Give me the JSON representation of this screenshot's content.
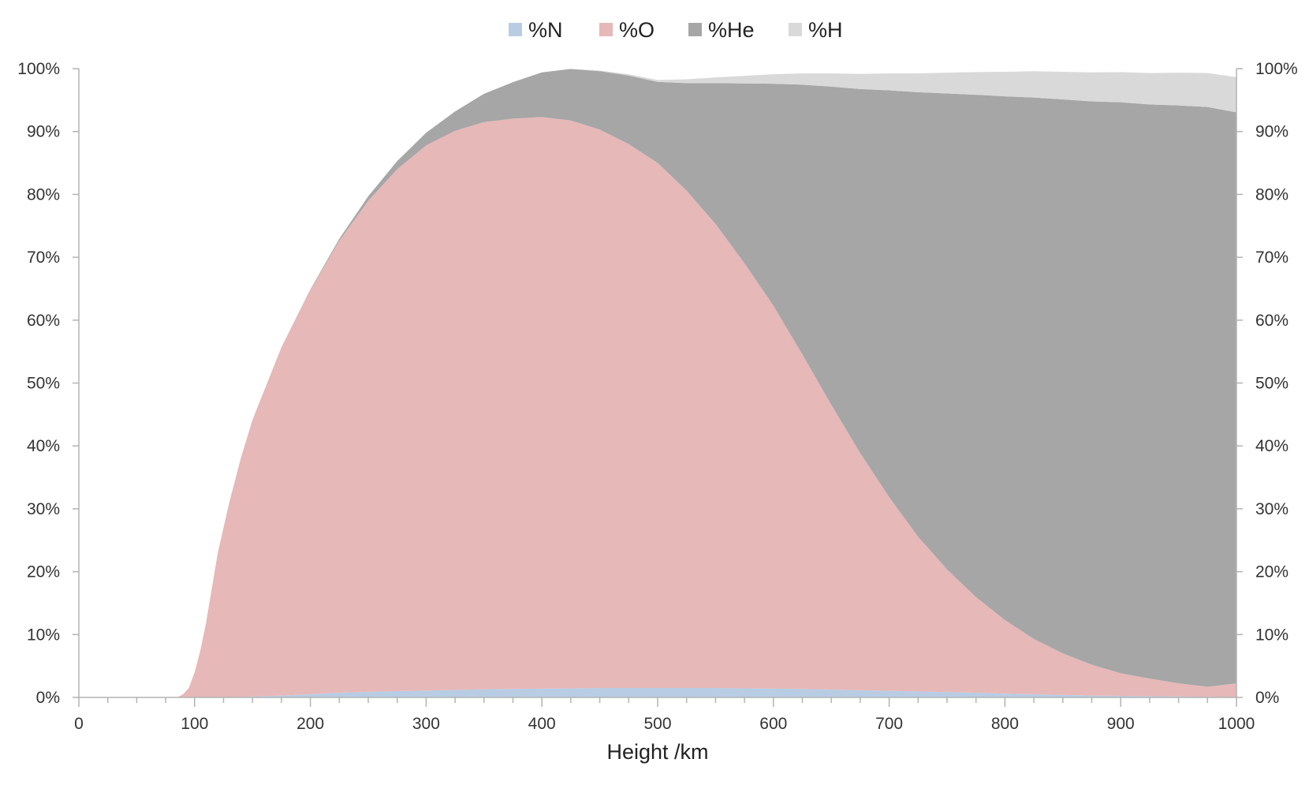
{
  "chart_data": {
    "type": "area",
    "stacked": true,
    "title": "",
    "xlabel": "Height /km",
    "ylabel": "",
    "xlim": [
      0,
      1000
    ],
    "ylim": [
      0,
      100
    ],
    "x_ticks": [
      0,
      100,
      200,
      300,
      400,
      500,
      600,
      700,
      800,
      900,
      1000
    ],
    "x_tick_labels": [
      "0",
      "100",
      "200",
      "300",
      "400",
      "500",
      "600",
      "700",
      "800",
      "900",
      "1000"
    ],
    "x_minor_step": 25,
    "y_ticks": [
      0,
      10,
      20,
      30,
      40,
      50,
      60,
      70,
      80,
      90,
      100
    ],
    "y_tick_labels": [
      "0%",
      "10%",
      "20%",
      "30%",
      "40%",
      "50%",
      "60%",
      "70%",
      "80%",
      "90%",
      "100%"
    ],
    "secondary_y_axis": true,
    "grid": false,
    "legend_position": "top-center",
    "x": [
      0,
      50,
      85,
      90,
      95,
      100,
      105,
      110,
      115,
      120,
      130,
      140,
      150,
      175,
      200,
      225,
      250,
      275,
      300,
      325,
      350,
      375,
      400,
      425,
      450,
      475,
      500,
      525,
      550,
      575,
      600,
      625,
      650,
      675,
      700,
      725,
      750,
      775,
      800,
      825,
      850,
      875,
      900,
      925,
      950,
      975,
      1000
    ],
    "series": [
      {
        "name": "%N",
        "color": "#b8cce4",
        "values": [
          0,
          0,
          0,
          0,
          0,
          0,
          0,
          0,
          0,
          0,
          0.05,
          0.1,
          0.15,
          0.3,
          0.5,
          0.75,
          0.9,
          1.0,
          1.1,
          1.2,
          1.3,
          1.35,
          1.4,
          1.45,
          1.5,
          1.5,
          1.5,
          1.5,
          1.5,
          1.45,
          1.4,
          1.35,
          1.25,
          1.15,
          1.05,
          0.95,
          0.85,
          0.75,
          0.6,
          0.5,
          0.4,
          0.3,
          0.25,
          0.2,
          0.15,
          0.1,
          0.05
        ]
      },
      {
        "name": "%O",
        "color": "#e6b8b8",
        "values": [
          0,
          0,
          0,
          0.5,
          1.5,
          4,
          7.5,
          12,
          17.5,
          23,
          31,
          38,
          44,
          55.4,
          64.3,
          71.9,
          78.1,
          83,
          86.7,
          88.9,
          90.2,
          90.7,
          90.9,
          90.3,
          88.8,
          86.5,
          83.5,
          79.1,
          73.8,
          67.6,
          60.9,
          53.2,
          45.3,
          37.7,
          30.8,
          24.6,
          19.5,
          15.2,
          11.7,
          8.8,
          6.6,
          4.9,
          3.6,
          2.8,
          2.1,
          1.6,
          2.2
        ]
      },
      {
        "name": "%He",
        "color": "#a6a6a6",
        "values": [
          0,
          0,
          0,
          0,
          0,
          0,
          0,
          0,
          0,
          0,
          0,
          0,
          0,
          0,
          0.1,
          0.3,
          0.7,
          1.3,
          2.0,
          3.1,
          4.5,
          5.8,
          7.1,
          8.2,
          9.3,
          10.9,
          12.9,
          17.1,
          22.4,
          28.6,
          35.3,
          42.9,
          50.6,
          57.9,
          64.7,
          70.7,
          75.7,
          79.9,
          83.3,
          86.1,
          88.1,
          89.6,
          90.8,
          91.3,
          91.9,
          92.2,
          90.8
        ]
      },
      {
        "name": "%H",
        "color": "#d9d9d9",
        "values": [
          0,
          0,
          0,
          0,
          0,
          0,
          0,
          0,
          0,
          0,
          0,
          0,
          0,
          0,
          0,
          0,
          0,
          0,
          0,
          0,
          0,
          0,
          0,
          0,
          0.1,
          0.2,
          0.3,
          0.6,
          0.9,
          1.2,
          1.5,
          1.8,
          2.1,
          2.4,
          2.7,
          3.0,
          3.3,
          3.6,
          3.9,
          4.2,
          4.4,
          4.6,
          4.8,
          5.0,
          5.2,
          5.4,
          5.6
        ]
      }
    ]
  }
}
